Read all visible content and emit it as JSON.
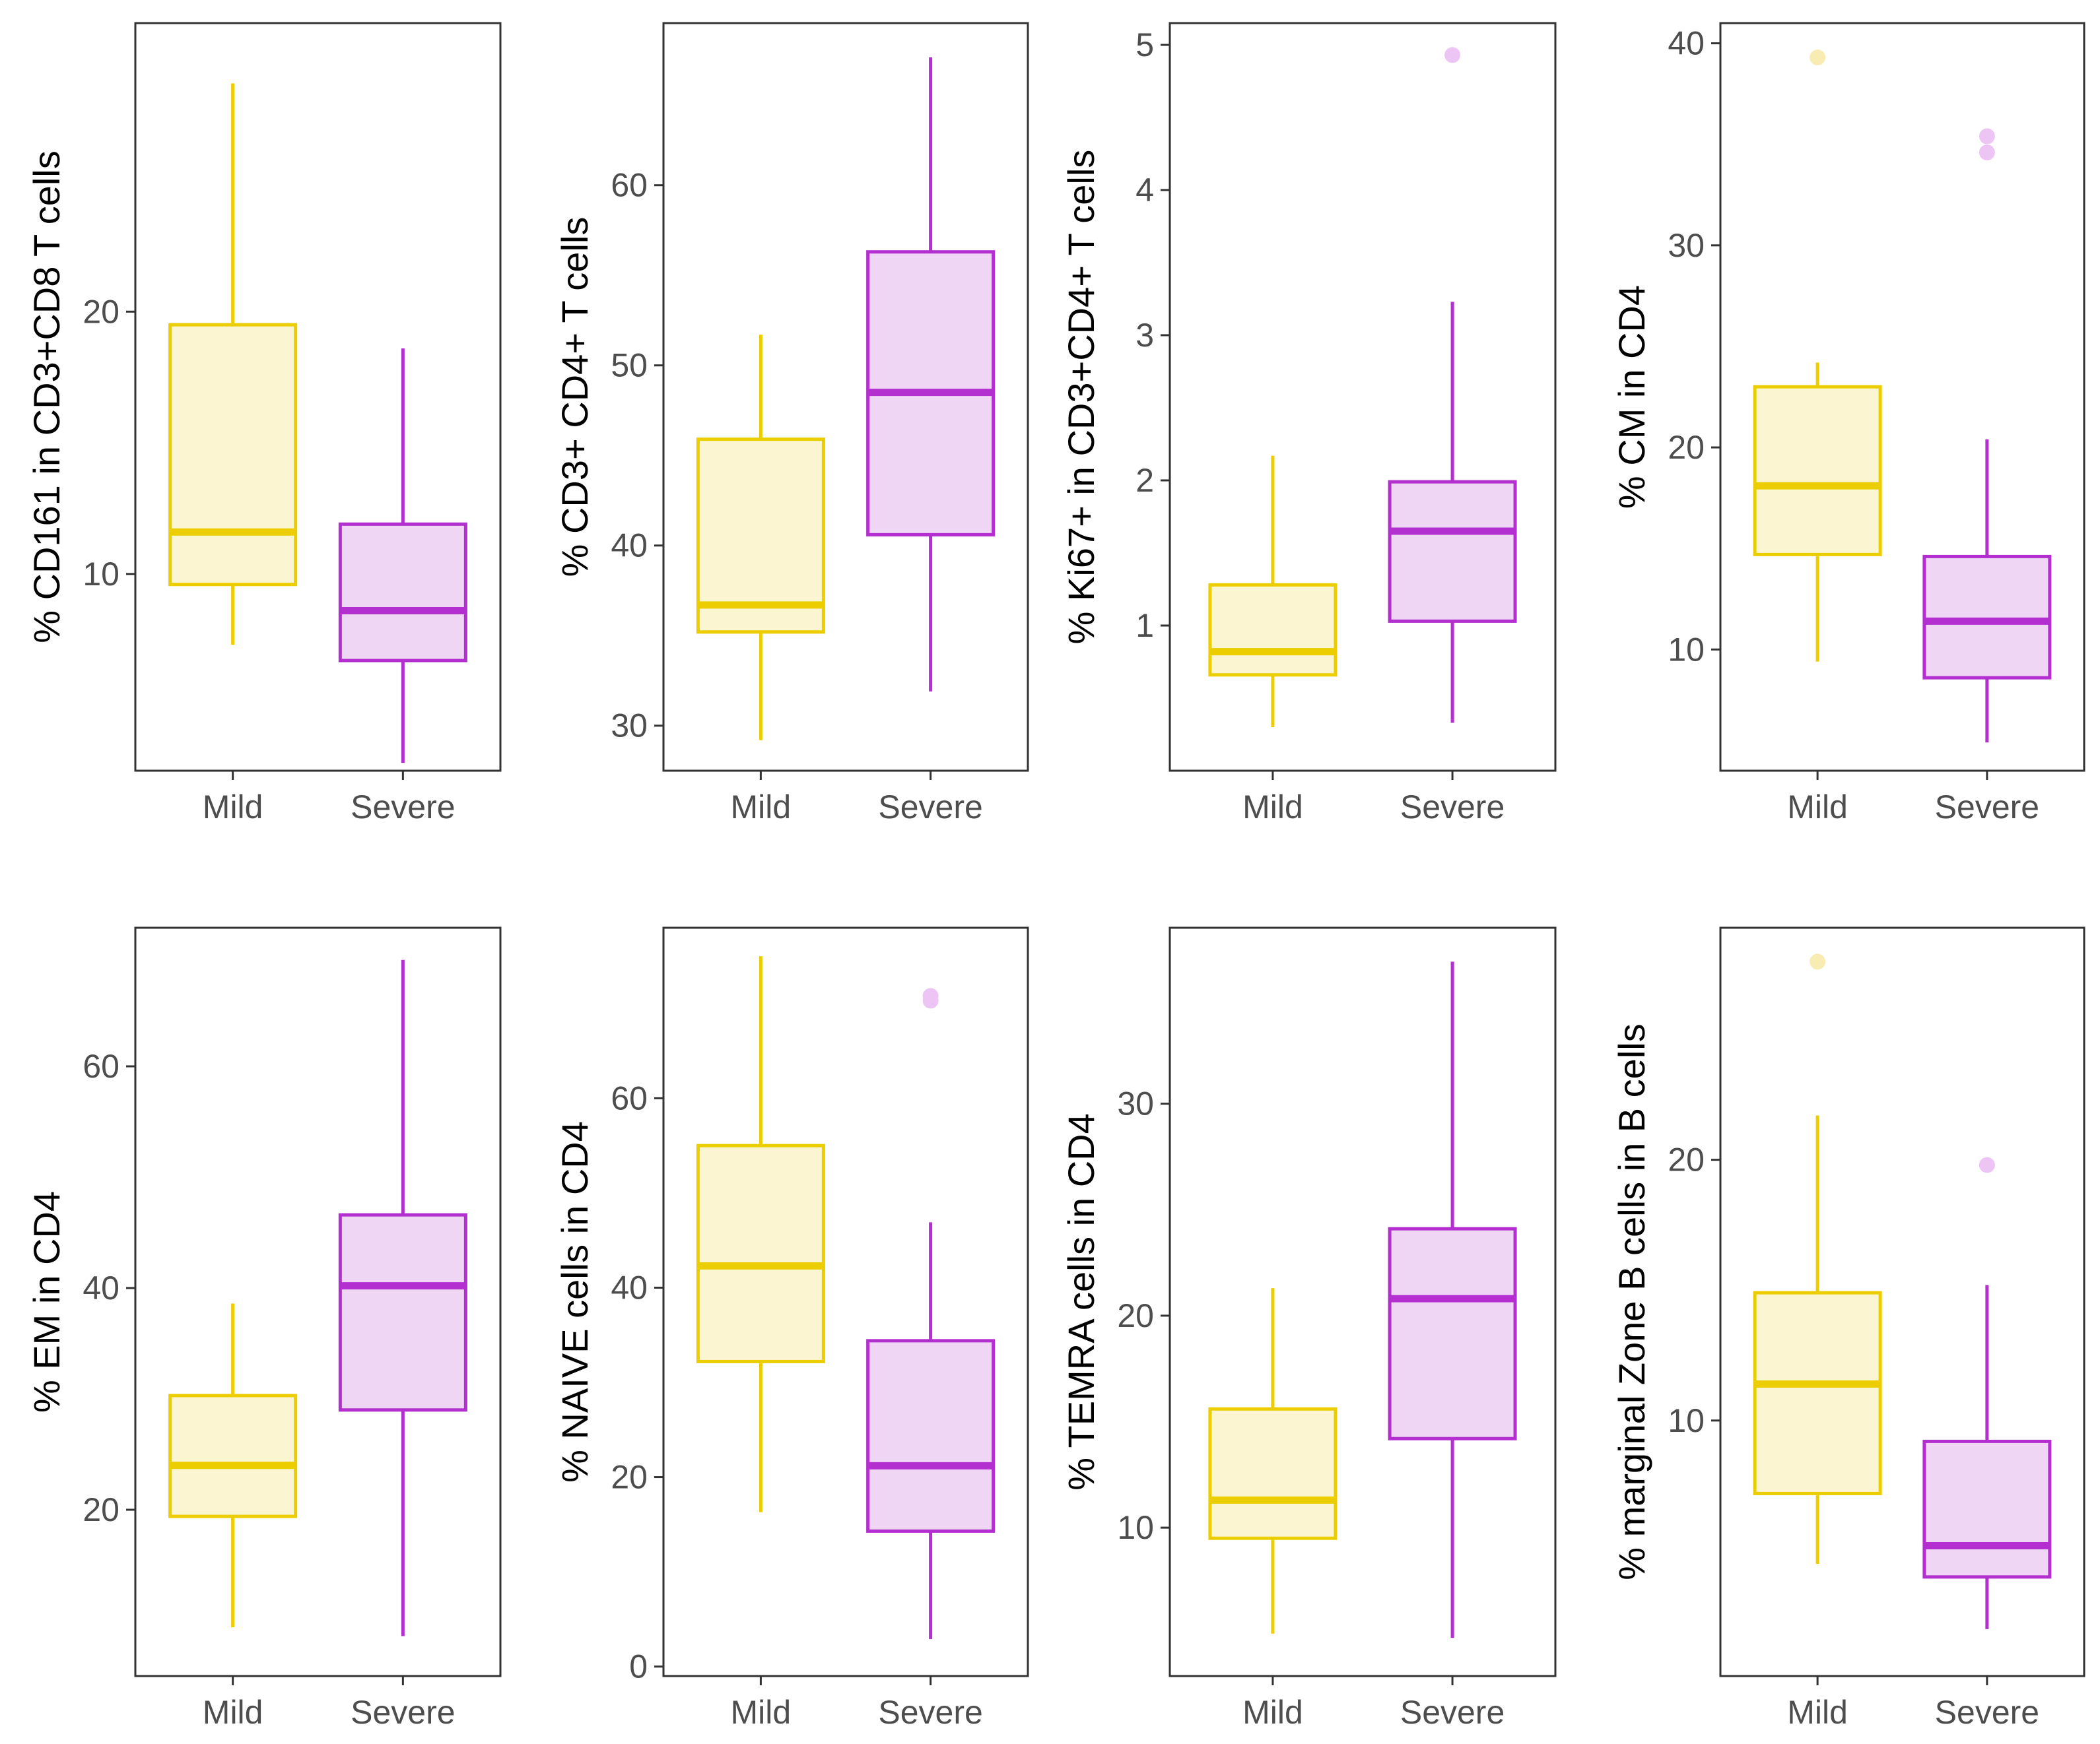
{
  "colors": {
    "Mild": {
      "stroke": "#eccd00",
      "fill": "#fbf5d1",
      "outlier": "#f8ecb2"
    },
    "Severe": {
      "stroke": "#b32fcf",
      "fill": "#f0d6f5",
      "outlier": "#edc5f5"
    },
    "axis": "#333333",
    "tick_text": "#4d4d4d"
  },
  "chart_data": [
    {
      "type": "box",
      "ylabel": "% CD161 in CD3+CD8 T cells",
      "ylim": [
        2.5,
        31
      ],
      "yticks": [
        10,
        20
      ],
      "categories": [
        "Mild",
        "Severe"
      ],
      "boxes": [
        {
          "group": "Mild",
          "min": 7.3,
          "q1": 9.6,
          "median": 11.6,
          "q3": 19.5,
          "max": 28.7,
          "outliers": []
        },
        {
          "group": "Severe",
          "min": 2.8,
          "q1": 6.7,
          "median": 8.6,
          "q3": 11.9,
          "max": 18.6,
          "outliers": []
        }
      ]
    },
    {
      "type": "box",
      "ylabel": "% CD3+ CD4+ T cells",
      "ylim": [
        27.5,
        69
      ],
      "yticks": [
        30,
        40,
        50,
        60
      ],
      "categories": [
        "Mild",
        "Severe"
      ],
      "boxes": [
        {
          "group": "Mild",
          "min": 29.2,
          "q1": 35.2,
          "median": 36.7,
          "q3": 45.9,
          "max": 51.7,
          "outliers": []
        },
        {
          "group": "Severe",
          "min": 31.9,
          "q1": 40.6,
          "median": 48.5,
          "q3": 56.3,
          "max": 67.1,
          "outliers": []
        }
      ]
    },
    {
      "type": "box",
      "ylabel": "% Ki67+ in CD3+CD4+ T cells",
      "ylim": [
        0.0,
        5.15
      ],
      "yticks": [
        1,
        2,
        3,
        4,
        5
      ],
      "categories": [
        "Mild",
        "Severe"
      ],
      "boxes": [
        {
          "group": "Mild",
          "min": 0.3,
          "q1": 0.66,
          "median": 0.82,
          "q3": 1.28,
          "max": 2.17,
          "outliers": []
        },
        {
          "group": "Severe",
          "min": 0.33,
          "q1": 1.03,
          "median": 1.65,
          "q3": 1.99,
          "max": 3.23,
          "outliers": [
            4.93
          ]
        }
      ]
    },
    {
      "type": "box",
      "ylabel": "% CM in CD4",
      "ylim": [
        4.0,
        41.0
      ],
      "yticks": [
        10,
        20,
        30,
        40
      ],
      "categories": [
        "Mild",
        "Severe"
      ],
      "boxes": [
        {
          "group": "Mild",
          "min": 9.4,
          "q1": 14.7,
          "median": 18.1,
          "q3": 23.0,
          "max": 24.2,
          "outliers": [
            39.3
          ]
        },
        {
          "group": "Severe",
          "min": 5.4,
          "q1": 8.6,
          "median": 11.4,
          "q3": 14.6,
          "max": 20.4,
          "outliers": [
            35.4,
            34.6
          ]
        }
      ]
    },
    {
      "type": "box",
      "ylabel": "% EM in CD4",
      "ylim": [
        5.0,
        72.5
      ],
      "yticks": [
        20,
        40,
        60
      ],
      "categories": [
        "Mild",
        "Severe"
      ],
      "boxes": [
        {
          "group": "Mild",
          "min": 9.4,
          "q1": 19.4,
          "median": 24.0,
          "q3": 30.3,
          "max": 38.6,
          "outliers": []
        },
        {
          "group": "Severe",
          "min": 8.6,
          "q1": 29.0,
          "median": 40.2,
          "q3": 46.6,
          "max": 69.6,
          "outliers": []
        }
      ]
    },
    {
      "type": "box",
      "ylabel": "% NAIVE cells in CD4",
      "ylim": [
        -1.0,
        78.0
      ],
      "yticks": [
        0,
        20,
        40,
        60
      ],
      "categories": [
        "Mild",
        "Severe"
      ],
      "boxes": [
        {
          "group": "Mild",
          "min": 16.3,
          "q1": 32.2,
          "median": 42.3,
          "q3": 55.0,
          "max": 75.0,
          "outliers": []
        },
        {
          "group": "Severe",
          "min": 2.9,
          "q1": 14.3,
          "median": 21.2,
          "q3": 34.4,
          "max": 46.9,
          "outliers": [
            70.8,
            70.3
          ]
        }
      ]
    },
    {
      "type": "box",
      "ylabel": "% TEMRA cells in CD4",
      "ylim": [
        3.0,
        38.3
      ],
      "yticks": [
        10,
        20,
        30
      ],
      "categories": [
        "Mild",
        "Severe"
      ],
      "boxes": [
        {
          "group": "Mild",
          "min": 5.0,
          "q1": 9.5,
          "median": 11.3,
          "q3": 15.6,
          "max": 21.3,
          "outliers": []
        },
        {
          "group": "Severe",
          "min": 4.8,
          "q1": 14.2,
          "median": 20.8,
          "q3": 24.1,
          "max": 36.7,
          "outliers": []
        }
      ]
    },
    {
      "type": "box",
      "ylabel": "% marginal Zone B cells in B cells",
      "ylim": [
        0.2,
        28.9
      ],
      "yticks": [
        10,
        20
      ],
      "categories": [
        "Mild",
        "Severe"
      ],
      "boxes": [
        {
          "group": "Mild",
          "min": 4.5,
          "q1": 7.2,
          "median": 11.4,
          "q3": 14.9,
          "max": 21.7,
          "outliers": [
            27.6
          ]
        },
        {
          "group": "Severe",
          "min": 2.0,
          "q1": 4.0,
          "median": 5.2,
          "q3": 9.2,
          "max": 15.2,
          "outliers": [
            19.8
          ]
        }
      ]
    }
  ]
}
